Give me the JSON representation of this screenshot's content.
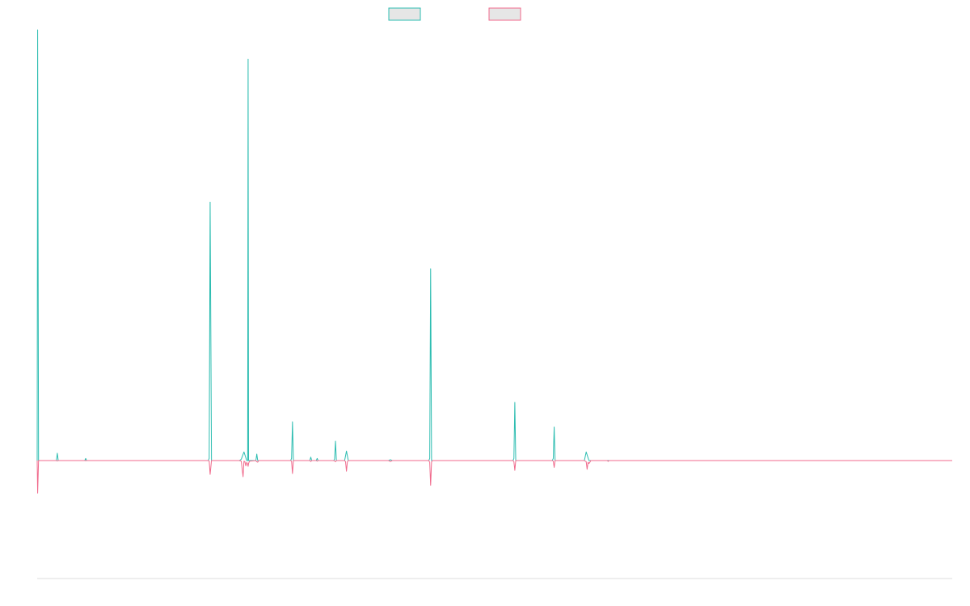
{
  "chart_data": {
    "type": "line",
    "title": "",
    "xlabel": "",
    "ylabel": "",
    "grid": false,
    "legend_position": "top",
    "x_range": [
      0,
      1000
    ],
    "y_range": [
      -1000,
      1000
    ],
    "series": [
      {
        "color": "#2dbdb1",
        "legend_fill": "#e6e6e6",
        "points": [
          [
            0,
            0
          ],
          [
            0.5,
            1000
          ],
          [
            1.5,
            0
          ],
          [
            21,
            0
          ],
          [
            22,
            17
          ],
          [
            23,
            0
          ],
          [
            52,
            0
          ],
          [
            53,
            5
          ],
          [
            54,
            0
          ],
          [
            187,
            0
          ],
          [
            188,
            5
          ],
          [
            189,
            600
          ],
          [
            190.5,
            0
          ],
          [
            221,
            0
          ],
          [
            223,
            3
          ],
          [
            226,
            20
          ],
          [
            229,
            0
          ],
          [
            230,
            0
          ],
          [
            230.5,
            932
          ],
          [
            231,
            0
          ],
          [
            239,
            0
          ],
          [
            240,
            15
          ],
          [
            241,
            0
          ],
          [
            277,
            0
          ],
          [
            278,
            5
          ],
          [
            279,
            90
          ],
          [
            280,
            0
          ],
          [
            298,
            0
          ],
          [
            299,
            8
          ],
          [
            300,
            0
          ],
          [
            305,
            0
          ],
          [
            306,
            5
          ],
          [
            307,
            0
          ],
          [
            324,
            0
          ],
          [
            325,
            3
          ],
          [
            326,
            45
          ],
          [
            327,
            0
          ],
          [
            336,
            0
          ],
          [
            338,
            22
          ],
          [
            340,
            0
          ],
          [
            384,
            0
          ],
          [
            386,
            2
          ],
          [
            388,
            0
          ],
          [
            428,
            0
          ],
          [
            429,
            5
          ],
          [
            430,
            445
          ],
          [
            431,
            0
          ],
          [
            520,
            0
          ],
          [
            521,
            5
          ],
          [
            522,
            135
          ],
          [
            523,
            0
          ],
          [
            563,
            0
          ],
          [
            564,
            5
          ],
          [
            565,
            78
          ],
          [
            566,
            0
          ],
          [
            598,
            0
          ],
          [
            600,
            20
          ],
          [
            603,
            0
          ],
          [
            1000,
            0
          ]
        ]
      },
      {
        "color": "#f06a8c",
        "legend_fill": "#e6e6e6",
        "points": [
          [
            0,
            0
          ],
          [
            0.5,
            -276
          ],
          [
            1.5,
            0
          ],
          [
            21,
            0
          ],
          [
            22,
            -3
          ],
          [
            23,
            0
          ],
          [
            52,
            0
          ],
          [
            53,
            -1
          ],
          [
            54,
            0
          ],
          [
            187,
            0
          ],
          [
            188,
            -5
          ],
          [
            189,
            -117
          ],
          [
            190.5,
            0
          ],
          [
            221,
            0
          ],
          [
            223,
            -5
          ],
          [
            225,
            -137
          ],
          [
            226,
            -5
          ],
          [
            227,
            -10
          ],
          [
            228,
            -45
          ],
          [
            229,
            -15
          ],
          [
            230,
            -30
          ],
          [
            230.5,
            -49
          ],
          [
            231,
            -25
          ],
          [
            232,
            -5
          ],
          [
            239,
            0
          ],
          [
            240,
            -10
          ],
          [
            241,
            -14
          ],
          [
            242,
            0
          ],
          [
            277,
            0
          ],
          [
            278,
            -5
          ],
          [
            279,
            -110
          ],
          [
            280,
            0
          ],
          [
            298,
            0
          ],
          [
            299,
            -8
          ],
          [
            300,
            0
          ],
          [
            305,
            0
          ],
          [
            306,
            -5
          ],
          [
            307,
            0
          ],
          [
            324,
            0
          ],
          [
            325,
            -3
          ],
          [
            326,
            -10
          ],
          [
            327,
            0
          ],
          [
            336,
            0
          ],
          [
            337,
            -10
          ],
          [
            338,
            -90
          ],
          [
            339,
            -10
          ],
          [
            340,
            0
          ],
          [
            384,
            0
          ],
          [
            386,
            -8
          ],
          [
            388,
            0
          ],
          [
            428,
            0
          ],
          [
            429,
            -15
          ],
          [
            430,
            -210
          ],
          [
            431,
            -10
          ],
          [
            432,
            0
          ],
          [
            520,
            0
          ],
          [
            521,
            -10
          ],
          [
            522,
            -83
          ],
          [
            523,
            0
          ],
          [
            563,
            0
          ],
          [
            564,
            -5
          ],
          [
            565,
            -58
          ],
          [
            566,
            0
          ],
          [
            598,
            0
          ],
          [
            600,
            -10
          ],
          [
            601,
            -74
          ],
          [
            602,
            -15
          ],
          [
            603,
            -25
          ],
          [
            604,
            -15
          ],
          [
            605,
            0
          ],
          [
            623,
            0
          ],
          [
            624,
            -7
          ],
          [
            625,
            0
          ],
          [
            1000,
            0
          ]
        ]
      }
    ]
  }
}
